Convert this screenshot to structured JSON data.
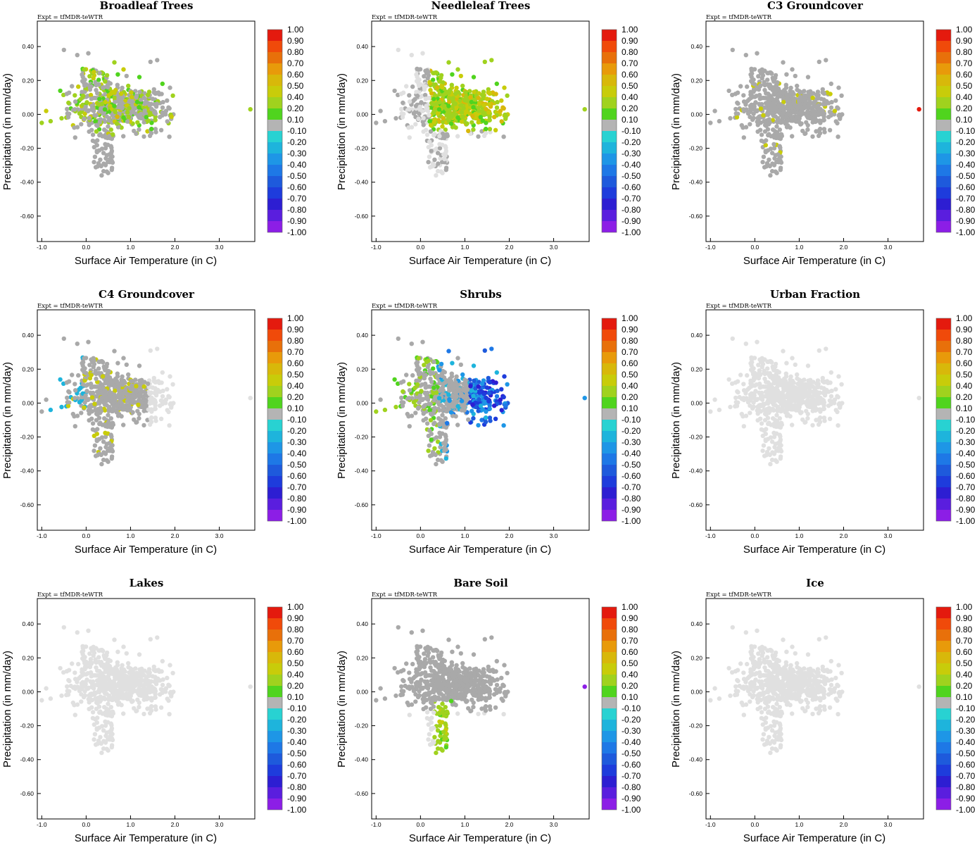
{
  "chart_data": [
    {
      "type": "scatter",
      "title": "Broadleaf Trees",
      "profile": "broadleaf"
    },
    {
      "type": "scatter",
      "title": "Needleleaf Trees",
      "profile": "needleleaf"
    },
    {
      "type": "scatter",
      "title": "C3 Groundcover",
      "profile": "c3"
    },
    {
      "type": "scatter",
      "title": "C4 Groundcover",
      "profile": "c4"
    },
    {
      "type": "scatter",
      "title": "Shrubs",
      "profile": "shrubs"
    },
    {
      "type": "scatter",
      "title": "Urban Fraction",
      "profile": "none"
    },
    {
      "type": "scatter",
      "title": "Lakes",
      "profile": "none"
    },
    {
      "type": "scatter",
      "title": "Bare Soil",
      "profile": "baresoil"
    },
    {
      "type": "scatter",
      "title": "Ice",
      "profile": "none"
    }
  ],
  "shared": {
    "expt_label": "Expt = tfMDR-teWTR",
    "xlabel": "Surface Air Temperature (in C)",
    "ylabel": "Precipitation (in mm/day)",
    "xlim": [
      -1.1,
      3.8
    ],
    "ylim": [
      -0.75,
      0.55
    ],
    "x_ticks": [
      "-1.0",
      "0.0",
      "1.0",
      "2.0",
      "3.0"
    ],
    "y_ticks": [
      "0.40",
      "0.20",
      "0.00",
      "-0.20",
      "-0.40",
      "-0.60"
    ],
    "colorbar_labels": [
      "1.00",
      "0.90",
      "0.80",
      "0.70",
      "0.60",
      "0.50",
      "0.40",
      "0.20",
      "0.10",
      "-0.10",
      "-0.20",
      "-0.30",
      "-0.40",
      "-0.50",
      "-0.60",
      "-0.70",
      "-0.80",
      "-0.90",
      "-1.00"
    ],
    "colorbar_colors": [
      "#e41a0e",
      "#f04a0a",
      "#e8700a",
      "#e89a0a",
      "#d8b80a",
      "#c8cc0a",
      "#a0d21e",
      "#50d41e",
      "#b4b4b4",
      "#28d2d2",
      "#1eb4dc",
      "#1e96e6",
      "#1e78e6",
      "#1e5adc",
      "#1e3cdc",
      "#2d1ed2",
      "#5a1ede",
      "#8c1ee6"
    ],
    "gray_color": "#a9a9a9",
    "light_gray_color": "#e0e0e0"
  }
}
